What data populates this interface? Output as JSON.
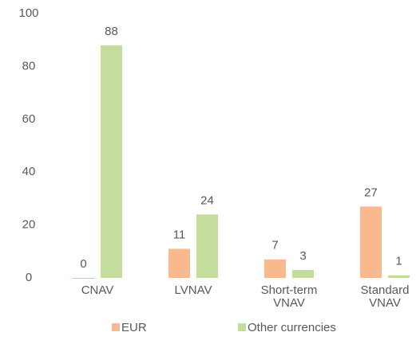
{
  "chart_data": {
    "type": "bar",
    "categories": [
      "CNAV",
      "LVNAV",
      "Short-term VNAV",
      "Standard VNAV"
    ],
    "series": [
      {
        "name": "EUR",
        "color": "#f9b98f",
        "values": [
          0,
          11,
          7,
          27
        ]
      },
      {
        "name": "Other currencies",
        "color": "#c4dc9c",
        "values": [
          88,
          24,
          3,
          1
        ]
      }
    ],
    "ylim": [
      0,
      100
    ],
    "yticks": [
      0,
      20,
      40,
      60,
      80,
      100
    ],
    "grid": false,
    "legend": "bottom"
  }
}
